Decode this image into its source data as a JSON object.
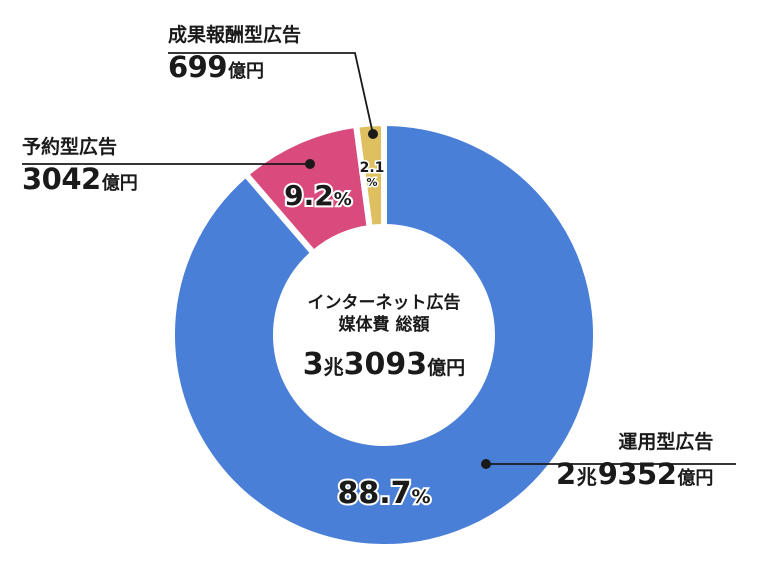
{
  "center": {
    "title_line1": "インターネット広告",
    "title_line2": "媒体費 総額",
    "total_num1": "3",
    "total_mid": "兆",
    "total_num2": "3093",
    "total_unit": "億円"
  },
  "labels": {
    "programmatic": {
      "name": "運用型広告",
      "amount_num1": "2",
      "amount_mid": "兆",
      "amount_num2": "9352",
      "amount_unit": "億円"
    },
    "reservation": {
      "name": "予約型広告",
      "amount_num": "3042",
      "amount_unit": "億円"
    },
    "performance": {
      "name": "成果報酬型広告",
      "amount_num": "699",
      "amount_unit": "億円"
    }
  },
  "chart_data": {
    "type": "pie",
    "style": "donut",
    "title": "",
    "total": "3兆3093億円",
    "slices": [
      {
        "name": "運用型広告",
        "amount": "2兆9352億円",
        "value": 88.7,
        "display_value": "88.7",
        "unit": "%",
        "color": "#4a7fd8"
      },
      {
        "name": "予約型広告",
        "amount": "3042億円",
        "value": 9.2,
        "display_value": "9.2",
        "unit": "%",
        "color": "#d94b7c"
      },
      {
        "name": "成果報酬型広告",
        "amount": "699億円",
        "value": 2.1,
        "display_value": "2.1",
        "unit": "%",
        "color": "#dfc060"
      }
    ]
  }
}
